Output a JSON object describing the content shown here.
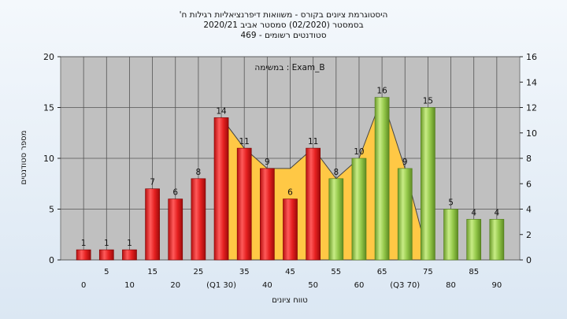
{
  "chart_data": {
    "type": "bar",
    "title_lines": [
      "'היסטוגרמת ציונים בקורס - משוואות דיפרנציאליות רגילות ח",
      "בסמסטר (02/2020) סמסטר אביב 2020/21",
      "סטודנטים רשומים - 469"
    ],
    "annotation": "במשימה : Exam_B",
    "xlabel": "טווח ציונים",
    "ylabel": "מספר סטודנטים",
    "ylim": [
      0,
      20
    ],
    "y_ticks": [
      0,
      5,
      10,
      15,
      20
    ],
    "y2lim": [
      0,
      16
    ],
    "y2_ticks": [
      0,
      2,
      4,
      6,
      8,
      10,
      12,
      14,
      16
    ],
    "categories": [
      "0",
      "5",
      "10",
      "15",
      "20",
      "25",
      "(Q1 30)",
      "35",
      "40",
      "45",
      "50",
      "55",
      "60",
      "65",
      "(Q3 70)",
      "75",
      "80",
      "85",
      "90"
    ],
    "values": [
      1,
      1,
      1,
      7,
      6,
      8,
      14,
      11,
      9,
      6,
      11,
      8,
      10,
      16,
      9,
      15,
      5,
      4,
      4
    ],
    "bar_colors": [
      "#e02020",
      "#e02020",
      "#e02020",
      "#e02020",
      "#e02020",
      "#e02020",
      "#e02020",
      "#e02020",
      "#e02020",
      "#e02020",
      "#e02020",
      "#8dc63f",
      "#8dc63f",
      "#8dc63f",
      "#8dc63f",
      "#8dc63f",
      "#8dc63f",
      "#8dc63f",
      "#8dc63f"
    ],
    "iqr_band_values": [
      14,
      11,
      9,
      9,
      11,
      8,
      10,
      16,
      9
    ],
    "iqr_band_color": "#ffc845",
    "grid": true,
    "plot_background": "#c0c0c0"
  }
}
